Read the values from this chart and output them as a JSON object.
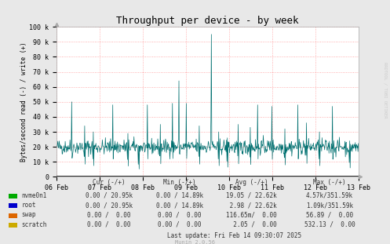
{
  "title": "Throughput per device - by week",
  "ylabel": "Bytes/second read (-) / write (+)",
  "background_color": "#e8e8e8",
  "plot_bg_color": "#ffffff",
  "grid_color": "#ff9999",
  "ylim": [
    0,
    100000
  ],
  "yticks": [
    0,
    10000,
    20000,
    30000,
    40000,
    50000,
    60000,
    70000,
    80000,
    90000,
    100000
  ],
  "ytick_labels": [
    "0",
    "10 k",
    "20 k",
    "30 k",
    "40 k",
    "50 k",
    "60 k",
    "70 k",
    "80 k",
    "90 k",
    "100 k"
  ],
  "x_start": 0,
  "x_end": 604800,
  "xtick_positions": [
    0,
    86400,
    172800,
    259200,
    345600,
    432000,
    518400,
    604800
  ],
  "xtick_labels": [
    "06 Feb",
    "07 Feb",
    "08 Feb",
    "09 Feb",
    "10 Feb",
    "11 Feb",
    "12 Feb",
    "13 Feb"
  ],
  "line_color": "#007070",
  "entries": [
    {
      "label": "nvme0n1",
      "color": "#00aa00",
      "cur": "0.00 / 20.95k",
      "min": "0.00 / 14.89k",
      "avg": "19.05 / 22.62k",
      "max": "4.57k/351.59k"
    },
    {
      "label": "root",
      "color": "#0000cc",
      "cur": "0.00 / 20.95k",
      "min": "0.00 / 14.89k",
      "avg": " 2.98 / 22.62k",
      "max": "1.09k/351.59k"
    },
    {
      "label": "swap",
      "color": "#dd6600",
      "cur": "0.00 /  0.00",
      "min": "0.00 /  0.00",
      "avg": "116.65m/  0.00",
      "max": "56.89 /  0.00"
    },
    {
      "label": "scratch",
      "color": "#ccaa00",
      "cur": "0.00 /  0.00",
      "min": "0.00 /  0.00",
      "avg": "  2.05 /  0.00",
      "max": "532.13 /  0.00"
    }
  ],
  "last_update": "Last update: Fri Feb 14 09:30:07 2025",
  "munin_version": "Munin 2.0.56",
  "rrdtool_label": "RRDTOOL / TOBI OETIKER",
  "num_points": 700,
  "baseline": 20000,
  "baseline_variation": 2500,
  "spike_positions": [
    35,
    65,
    85,
    130,
    165,
    190,
    210,
    240,
    268,
    283,
    300,
    330,
    358,
    375,
    395,
    420,
    448,
    465,
    498,
    528,
    558,
    578,
    608,
    638,
    678
  ],
  "spike_heights": [
    50000,
    34000,
    30000,
    48000,
    29000,
    21000,
    48000,
    35000,
    49000,
    64000,
    49000,
    34000,
    95000,
    30000,
    26000,
    35000,
    33000,
    48000,
    47000,
    32000,
    48000,
    36000,
    30000,
    47000,
    24000
  ]
}
